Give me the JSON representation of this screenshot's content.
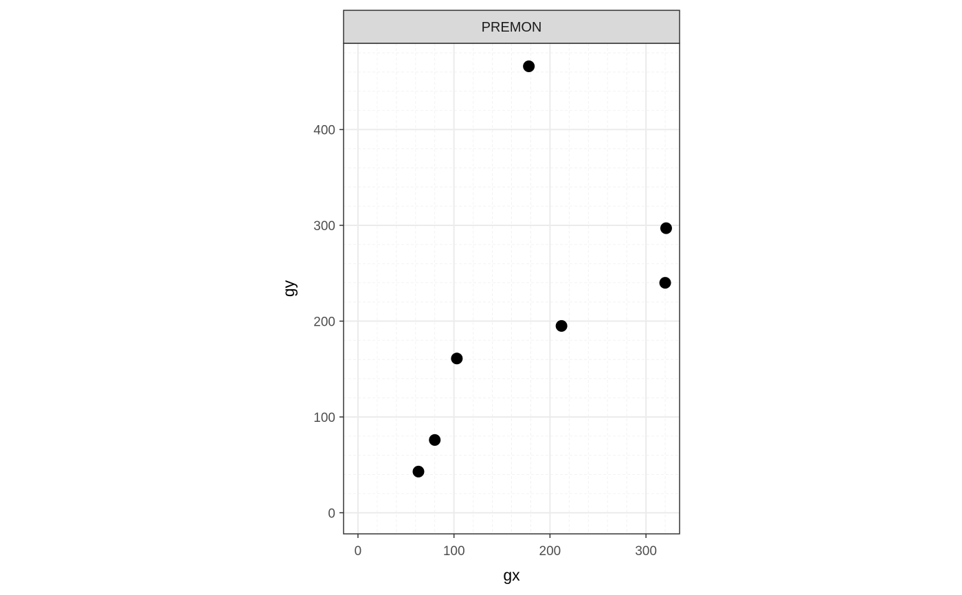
{
  "chart_data": {
    "type": "scatter",
    "facet_label": "PREMON",
    "xlabel": "gx",
    "ylabel": "gy",
    "xlim": [
      -15,
      335
    ],
    "ylim": [
      -22,
      490
    ],
    "x_ticks": [
      0,
      100,
      200,
      300
    ],
    "y_ticks": [
      0,
      100,
      200,
      300,
      400
    ],
    "x_tick_labels": [
      "0",
      "100",
      "200",
      "300"
    ],
    "y_tick_labels": [
      "0",
      "100",
      "200",
      "300",
      "400"
    ],
    "grid": true,
    "theme": "bw",
    "points": [
      {
        "x": 63,
        "y": 43
      },
      {
        "x": 80,
        "y": 76
      },
      {
        "x": 103,
        "y": 161
      },
      {
        "x": 178,
        "y": 466
      },
      {
        "x": 212,
        "y": 195
      },
      {
        "x": 320,
        "y": 240
      },
      {
        "x": 321,
        "y": 297
      }
    ],
    "colors": {
      "point": "#000000",
      "strip_fill": "#d9d9d9",
      "grid_major": "#ebebeb",
      "grid_minor": "#f2f2f2",
      "border": "#333333"
    }
  }
}
